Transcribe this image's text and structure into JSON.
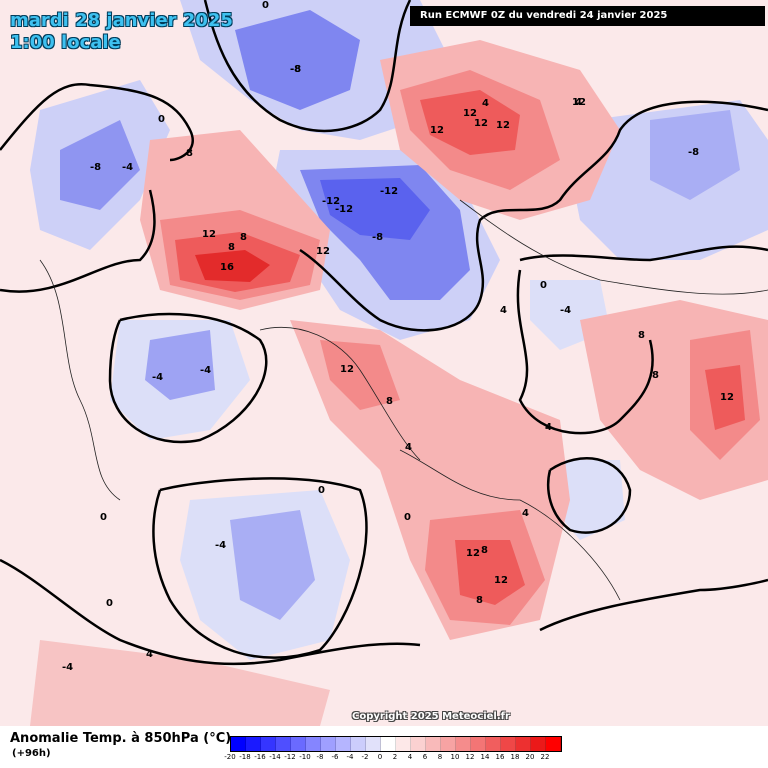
{
  "header": {
    "date": "mardi 28 janvier 2025",
    "time": "1:00 locale",
    "run_info": "Run ECMWF 0Z du vendredi 24 janvier 2025"
  },
  "copyright": "Copyright 2025 Meteociel.fr",
  "footer": {
    "variable_title": "Anomalie Temp. à 850hPa (°C)",
    "lead_time": "(+96h)"
  },
  "legend": {
    "labels": [
      "-20",
      "-18",
      "-16",
      "-14",
      "-12",
      "-10",
      "-8",
      "-6",
      "-4",
      "-2",
      "0",
      "2",
      "4",
      "6",
      "8",
      "10",
      "12",
      "14",
      "16",
      "18",
      "20",
      "22"
    ],
    "colors": [
      "#0000ff",
      "#1a1aff",
      "#3535ff",
      "#4f4fff",
      "#6a6aff",
      "#8585ff",
      "#9f9fff",
      "#b5b5ff",
      "#cccdfc",
      "#e1e1fa",
      "#ffffff",
      "#fde8e8",
      "#fbd1d1",
      "#f9baba",
      "#f7a3a3",
      "#f58c8c",
      "#f37575",
      "#f15e5e",
      "#ef4747",
      "#ed3030",
      "#eb1919",
      "#ff0000"
    ]
  },
  "map": {
    "background_color": "#fbe9ea",
    "anomaly_regions": [
      {
        "kind": "cold",
        "value": -8,
        "color": "#7f86f0"
      },
      {
        "kind": "cold",
        "value": -12,
        "color": "#5a62ee"
      },
      {
        "kind": "warm",
        "value": 8,
        "color": "#f38a8a"
      },
      {
        "kind": "warm",
        "value": 12,
        "color": "#ee5b5b"
      },
      {
        "kind": "warm",
        "value": 16,
        "color": "#e32b2b"
      }
    ],
    "labels": [
      {
        "text": "0"
      },
      {
        "text": "-8"
      },
      {
        "text": "8"
      },
      {
        "text": "12"
      },
      {
        "text": "12"
      },
      {
        "text": "12"
      },
      {
        "text": "-8"
      },
      {
        "text": "-4"
      },
      {
        "text": "0"
      },
      {
        "text": "8"
      },
      {
        "text": "12"
      },
      {
        "text": "8"
      },
      {
        "text": "12"
      },
      {
        "text": "16"
      },
      {
        "text": "12"
      },
      {
        "text": "-12"
      },
      {
        "text": "-12"
      },
      {
        "text": "-12"
      },
      {
        "text": "-8"
      },
      {
        "text": "-8"
      },
      {
        "text": "4"
      },
      {
        "text": "4"
      },
      {
        "text": "-4"
      },
      {
        "text": "-8"
      },
      {
        "text": "12"
      },
      {
        "text": "8"
      },
      {
        "text": "4"
      },
      {
        "text": "0"
      },
      {
        "text": "-4"
      },
      {
        "text": "-4"
      },
      {
        "text": "0"
      },
      {
        "text": "0"
      },
      {
        "text": "-4"
      },
      {
        "text": "12"
      },
      {
        "text": "8"
      },
      {
        "text": "8"
      },
      {
        "text": "12"
      },
      {
        "text": "8"
      },
      {
        "text": "12"
      },
      {
        "text": "4"
      },
      {
        "text": "0"
      },
      {
        "text": "12"
      },
      {
        "text": "4"
      },
      {
        "text": "-4"
      },
      {
        "text": "0"
      },
      {
        "text": "4"
      },
      {
        "text": "4"
      },
      {
        "text": "8"
      }
    ]
  }
}
